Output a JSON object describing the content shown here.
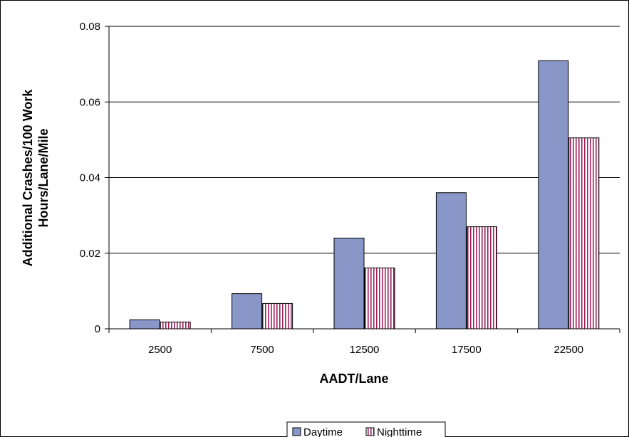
{
  "chart_data": {
    "type": "bar",
    "title": "",
    "xlabel": "AADT/Lane",
    "ylabel_lines": [
      "Additional Crashes/100 Work",
      "Hours/Lane/Mile"
    ],
    "categories": [
      "2500",
      "7500",
      "12500",
      "17500",
      "22500"
    ],
    "ylim": [
      0,
      0.08
    ],
    "yticks": [
      "0",
      "0.02",
      "0.04",
      "0.06",
      "0.08"
    ],
    "ytick_values": [
      0,
      0.02,
      0.04,
      0.06,
      0.08
    ],
    "grid": true,
    "legend_position": "bottom",
    "series": [
      {
        "name": "Daytime",
        "values": [
          0.0024,
          0.0093,
          0.024,
          0.036,
          0.0709
        ],
        "color": "#8896c8",
        "pattern": "solid"
      },
      {
        "name": "Nighttime",
        "values": [
          0.0018,
          0.0067,
          0.0161,
          0.027,
          0.0505
        ],
        "color": "#a0205a",
        "pattern": "vertical-stripes"
      }
    ]
  }
}
